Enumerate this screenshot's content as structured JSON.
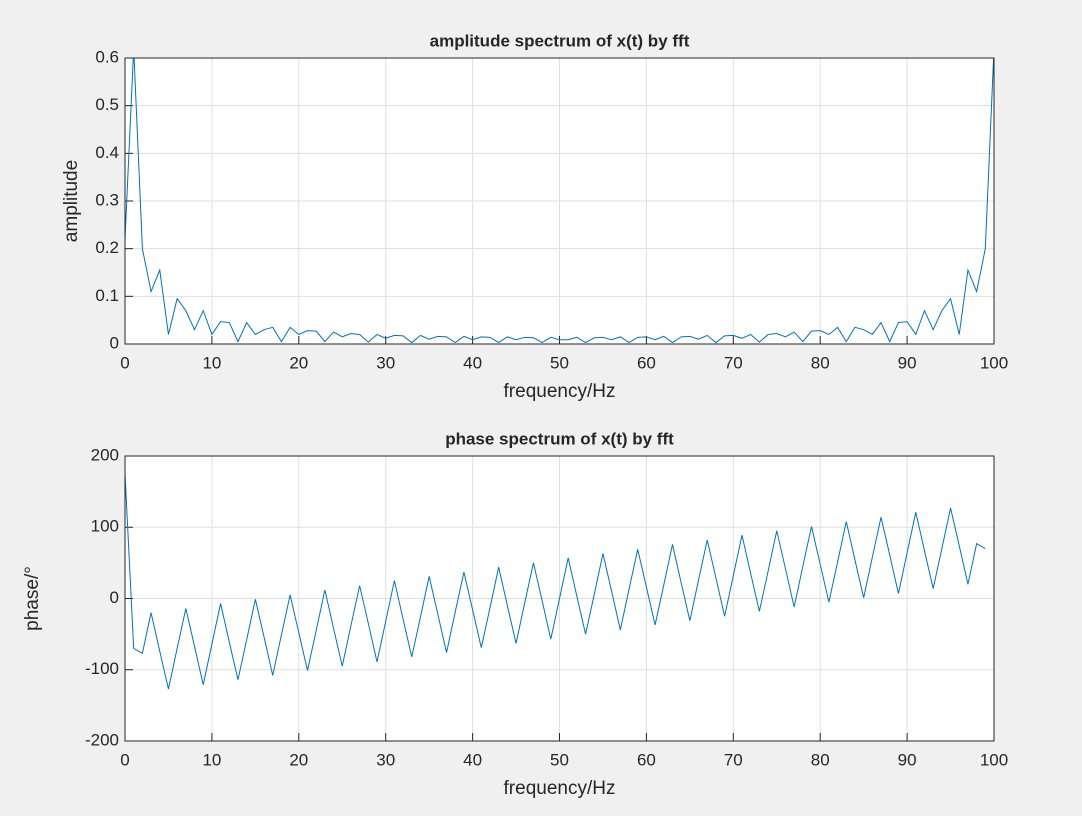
{
  "chart_data": [
    {
      "type": "line",
      "title": "amplitude spectrum of x(t) by fft",
      "xlabel": "frequency/Hz",
      "ylabel": "amplitude",
      "color": "#0072bd",
      "grid": true,
      "xlim": [
        0,
        100
      ],
      "xticks": [
        0,
        10,
        20,
        30,
        40,
        50,
        60,
        70,
        80,
        90,
        100
      ],
      "ylim": [
        0,
        0.6
      ],
      "yticks": [
        0,
        0.1,
        0.2,
        0.3,
        0.4,
        0.5,
        0.6
      ],
      "x": [
        0,
        1,
        2,
        3,
        4,
        5,
        6,
        7,
        8,
        9,
        10,
        11,
        12,
        13,
        14,
        15,
        16,
        17,
        18,
        19,
        20,
        21,
        22,
        23,
        24,
        25,
        26,
        27,
        28,
        29,
        30,
        31,
        32,
        33,
        34,
        35,
        36,
        37,
        38,
        39,
        40,
        41,
        42,
        43,
        44,
        45,
        46,
        47,
        48,
        49,
        50,
        51,
        52,
        53,
        54,
        55,
        56,
        57,
        58,
        59,
        60,
        61,
        62,
        63,
        64,
        65,
        66,
        67,
        68,
        69,
        70,
        71,
        72,
        73,
        74,
        75,
        76,
        77,
        78,
        79,
        80,
        81,
        82,
        83,
        84,
        85,
        86,
        87,
        88,
        89,
        90,
        91,
        92,
        93,
        94,
        95,
        96,
        97,
        98,
        99,
        100
      ],
      "values": [
        0.22,
        0.62,
        0.2,
        0.11,
        0.155,
        0.02,
        0.095,
        0.07,
        0.03,
        0.07,
        0.02,
        0.047,
        0.045,
        0.005,
        0.045,
        0.02,
        0.03,
        0.035,
        0.005,
        0.035,
        0.02,
        0.028,
        0.027,
        0.005,
        0.025,
        0.015,
        0.022,
        0.02,
        0.004,
        0.02,
        0.012,
        0.018,
        0.017,
        0.003,
        0.018,
        0.01,
        0.016,
        0.015,
        0.003,
        0.016,
        0.009,
        0.015,
        0.014,
        0.003,
        0.015,
        0.009,
        0.014,
        0.013,
        0.003,
        0.014,
        0.009,
        0.009,
        0.014,
        0.003,
        0.013,
        0.014,
        0.009,
        0.015,
        0.003,
        0.014,
        0.015,
        0.009,
        0.016,
        0.003,
        0.015,
        0.016,
        0.01,
        0.018,
        0.003,
        0.017,
        0.018,
        0.012,
        0.02,
        0.004,
        0.02,
        0.022,
        0.015,
        0.025,
        0.005,
        0.027,
        0.028,
        0.02,
        0.035,
        0.005,
        0.035,
        0.03,
        0.02,
        0.045,
        0.005,
        0.045,
        0.047,
        0.02,
        0.07,
        0.03,
        0.07,
        0.095,
        0.02,
        0.155,
        0.11,
        0.2,
        0.62
      ]
    },
    {
      "type": "line",
      "title": "phase spectrum of x(t) by fft",
      "xlabel": "frequency/Hz",
      "ylabel": "phase/°",
      "color": "#0072bd",
      "grid": true,
      "xlim": [
        0,
        100
      ],
      "xticks": [
        0,
        10,
        20,
        30,
        40,
        50,
        60,
        70,
        80,
        90,
        100
      ],
      "ylim": [
        -200,
        200
      ],
      "yticks": [
        -200,
        -100,
        0,
        100,
        200
      ],
      "x": [
        0,
        1,
        2,
        3,
        4,
        5,
        6,
        7,
        8,
        9,
        10,
        11,
        12,
        13,
        14,
        15,
        16,
        17,
        18,
        19,
        20,
        21,
        22,
        23,
        24,
        25,
        26,
        27,
        28,
        29,
        30,
        31,
        32,
        33,
        34,
        35,
        36,
        37,
        38,
        39,
        40,
        41,
        42,
        43,
        44,
        45,
        46,
        47,
        48,
        49,
        50,
        51,
        52,
        53,
        54,
        55,
        56,
        57,
        58,
        59,
        60,
        61,
        62,
        63,
        64,
        65,
        66,
        67,
        68,
        69,
        70,
        71,
        72,
        73,
        74,
        75,
        76,
        77,
        78,
        79,
        80,
        81,
        82,
        83,
        84,
        85,
        86,
        87,
        88,
        89,
        90,
        91,
        92,
        93,
        94,
        95,
        96,
        97,
        98,
        99
      ],
      "values": [
        175,
        -70,
        -77,
        -20,
        -74,
        -127,
        -70,
        -14,
        -67,
        -121,
        -64,
        -7,
        -61,
        -114,
        -58,
        -1,
        -54,
        -108,
        -51,
        5,
        -48,
        -101,
        -45,
        12,
        -42,
        -95,
        -38,
        18,
        -35,
        -89,
        -32,
        25,
        -29,
        -82,
        -26,
        31,
        -22,
        -76,
        -19,
        37,
        -16,
        -69,
        -13,
        44,
        -10,
        -63,
        -6,
        50,
        -3,
        -57,
        0,
        57,
        3,
        -50,
        6,
        63,
        10,
        -44,
        13,
        69,
        16,
        -37,
        19,
        76,
        22,
        -31,
        26,
        82,
        29,
        -25,
        32,
        89,
        35,
        -18,
        38,
        95,
        42,
        -12,
        45,
        101,
        48,
        -5,
        51,
        108,
        54,
        1,
        58,
        114,
        61,
        7,
        64,
        121,
        67,
        14,
        70,
        127,
        74,
        20,
        77,
        70
      ]
    }
  ]
}
